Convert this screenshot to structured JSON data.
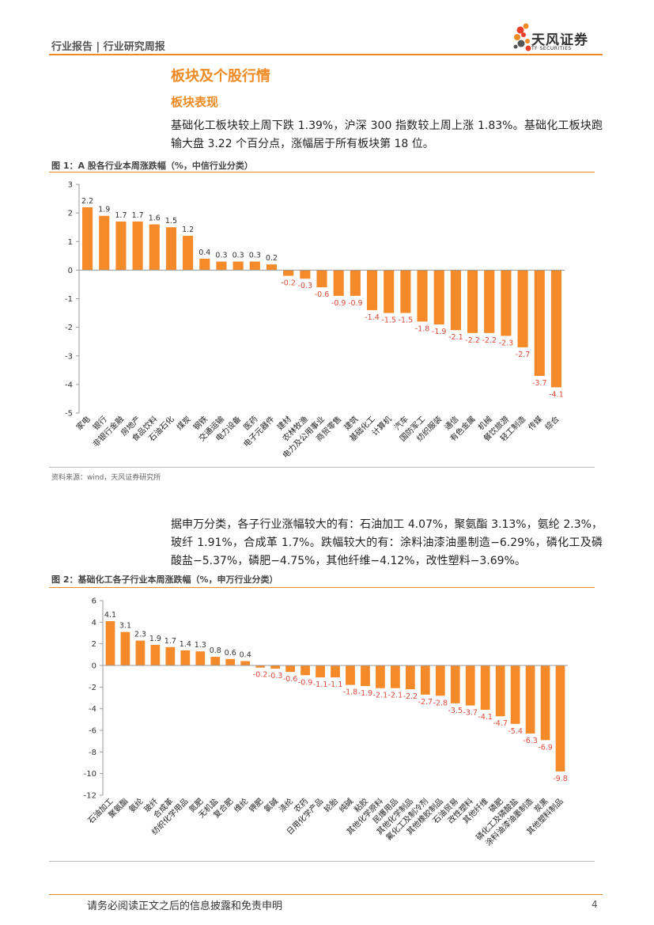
{
  "header": {
    "text": "行业报告 | 行业研究周报",
    "logo_cn": "天风证券",
    "logo_en": "TF SECURITIES"
  },
  "section_title": "板块及个股行情",
  "subsection_title": "板块表现",
  "paragraph1": "基础化工板块较上周下跌 1.39%，沪深 300 指数较上周上涨 1.83%。基础化工板块跑输大盘 3.22 个百分点，涨幅居于所有板块第 18 位。",
  "paragraph2": "据申万分类，各子行业涨幅较大的有：石油加工 4.07%，聚氨酯 3.13%，氨纶 2.3%，玻纤 1.91%，合成革 1.7%。跌幅较大的有：涂料油漆油墨制造−6.29%，磷化工及磷酸盐−5.37%，磷肥−4.75%，其他纤维−4.12%，改性塑料−3.69%。",
  "figure1": {
    "title": "图 1：A 股各行业本周涨跌幅（%，中信行业分类）",
    "source": "资料来源：wind，天风证券研究所"
  },
  "figure2": {
    "title": "图 2：基础化工各子行业本周涨跌幅（%，申万行业分类）"
  },
  "footer": {
    "disclaimer": "请务必阅读正文之后的信息披露和免责申明",
    "page": "4"
  },
  "colors": {
    "accent": "#f08a24",
    "bar": "#f58a2a",
    "negative_label": "#e04a3a"
  },
  "chart_data": [
    {
      "type": "bar",
      "title": "图 1：A 股各行业本周涨跌幅（%，中信行业分类）",
      "xlabel": "",
      "ylabel": "",
      "ylim": [
        -5,
        3
      ],
      "yticks": [
        3,
        2,
        1,
        0,
        -1,
        -2,
        -3,
        -4,
        -5
      ],
      "categories": [
        "家电",
        "银行",
        "非银行金融",
        "房地产",
        "食品饮料",
        "石油石化",
        "煤炭",
        "钢铁",
        "交通运输",
        "电力设备",
        "医药",
        "电子元器件",
        "建材",
        "农林牧渔",
        "电力及公用事业",
        "商贸零售",
        "建筑",
        "基础化工",
        "计算机",
        "汽车",
        "国防军工",
        "纺织服装",
        "通信",
        "有色金属",
        "机械",
        "餐饮旅游",
        "轻工制造",
        "传媒",
        "综合"
      ],
      "values": [
        2.2,
        1.9,
        1.7,
        1.7,
        1.6,
        1.5,
        1.2,
        0.4,
        0.3,
        0.3,
        0.3,
        0.2,
        -0.2,
        -0.3,
        -0.6,
        -0.9,
        -0.9,
        -1.4,
        -1.5,
        -1.5,
        -1.8,
        -1.9,
        -2.1,
        -2.2,
        -2.2,
        -2.3,
        -2.7,
        -3.7,
        -4.1
      ],
      "data_labels": [
        "2.2",
        "1.9",
        "1.7",
        "1.7",
        "1.6",
        "1.5",
        "1.2",
        "0.4",
        "0.3",
        "0.3",
        "0.3",
        "0.2",
        "-0.2",
        "-0.3",
        "-0.6",
        "-0.9",
        "-0.9",
        "-1.4",
        "-1.5",
        "-1.5",
        "-1.8",
        "-1.9",
        "-2.1",
        "-2.2",
        "-2.2",
        "-2.3",
        "-2.7",
        "-3.7",
        "-4.1"
      ]
    },
    {
      "type": "bar",
      "title": "图 2：基础化工各子行业本周涨跌幅（%，申万行业分类）",
      "xlabel": "",
      "ylabel": "",
      "ylim": [
        -12,
        6
      ],
      "yticks": [
        6,
        4,
        2,
        0,
        -2,
        -4,
        -6,
        -8,
        -10,
        -12
      ],
      "categories": [
        "石油加工",
        "聚氨酯",
        "氨纶",
        "玻纤",
        "合成革",
        "纺织化学用品",
        "氮肥",
        "无机盐",
        "复合肥",
        "维纶",
        "钾肥",
        "氯碱",
        "涤纶",
        "农药",
        "日用化学产品",
        "轮胎",
        "纯碱",
        "粘胶",
        "其他化学原料",
        "民爆用品",
        "其他化学制品",
        "氟化工及制冷剂",
        "其他橡胶制品",
        "石油贸易",
        "改性塑料",
        "其他纤维",
        "磷肥",
        "磷化工及磷酸盐",
        "涂料油漆油墨制造",
        "炭黑",
        "其他塑料制品"
      ],
      "values": [
        4.1,
        3.1,
        2.3,
        1.9,
        1.7,
        1.4,
        1.3,
        0.8,
        0.6,
        0.4,
        -0.2,
        -0.3,
        -0.6,
        -0.9,
        -1.1,
        -1.1,
        -1.8,
        -1.9,
        -2.1,
        -2.1,
        -2.2,
        -2.7,
        -2.8,
        -3.5,
        -3.7,
        -4.1,
        -4.7,
        -5.4,
        -6.3,
        -6.9,
        -9.8
      ],
      "data_labels": [
        "4.1",
        "3.1",
        "2.3",
        "1.9",
        "1.7",
        "1.4",
        "1.3",
        "0.8",
        "0.6",
        "0.4",
        "-0.2",
        "-0.3",
        "-0.6",
        "-0.9",
        "-1.1",
        "-1.1",
        "-1.8",
        "-1.9",
        "-2.1",
        "-2.1",
        "-2.2",
        "-2.7",
        "-2.8",
        "-3.5",
        "-3.7",
        "-4.1",
        "-4.7",
        "-5.4",
        "-6.3",
        "-6.9",
        "-9.8"
      ]
    }
  ]
}
